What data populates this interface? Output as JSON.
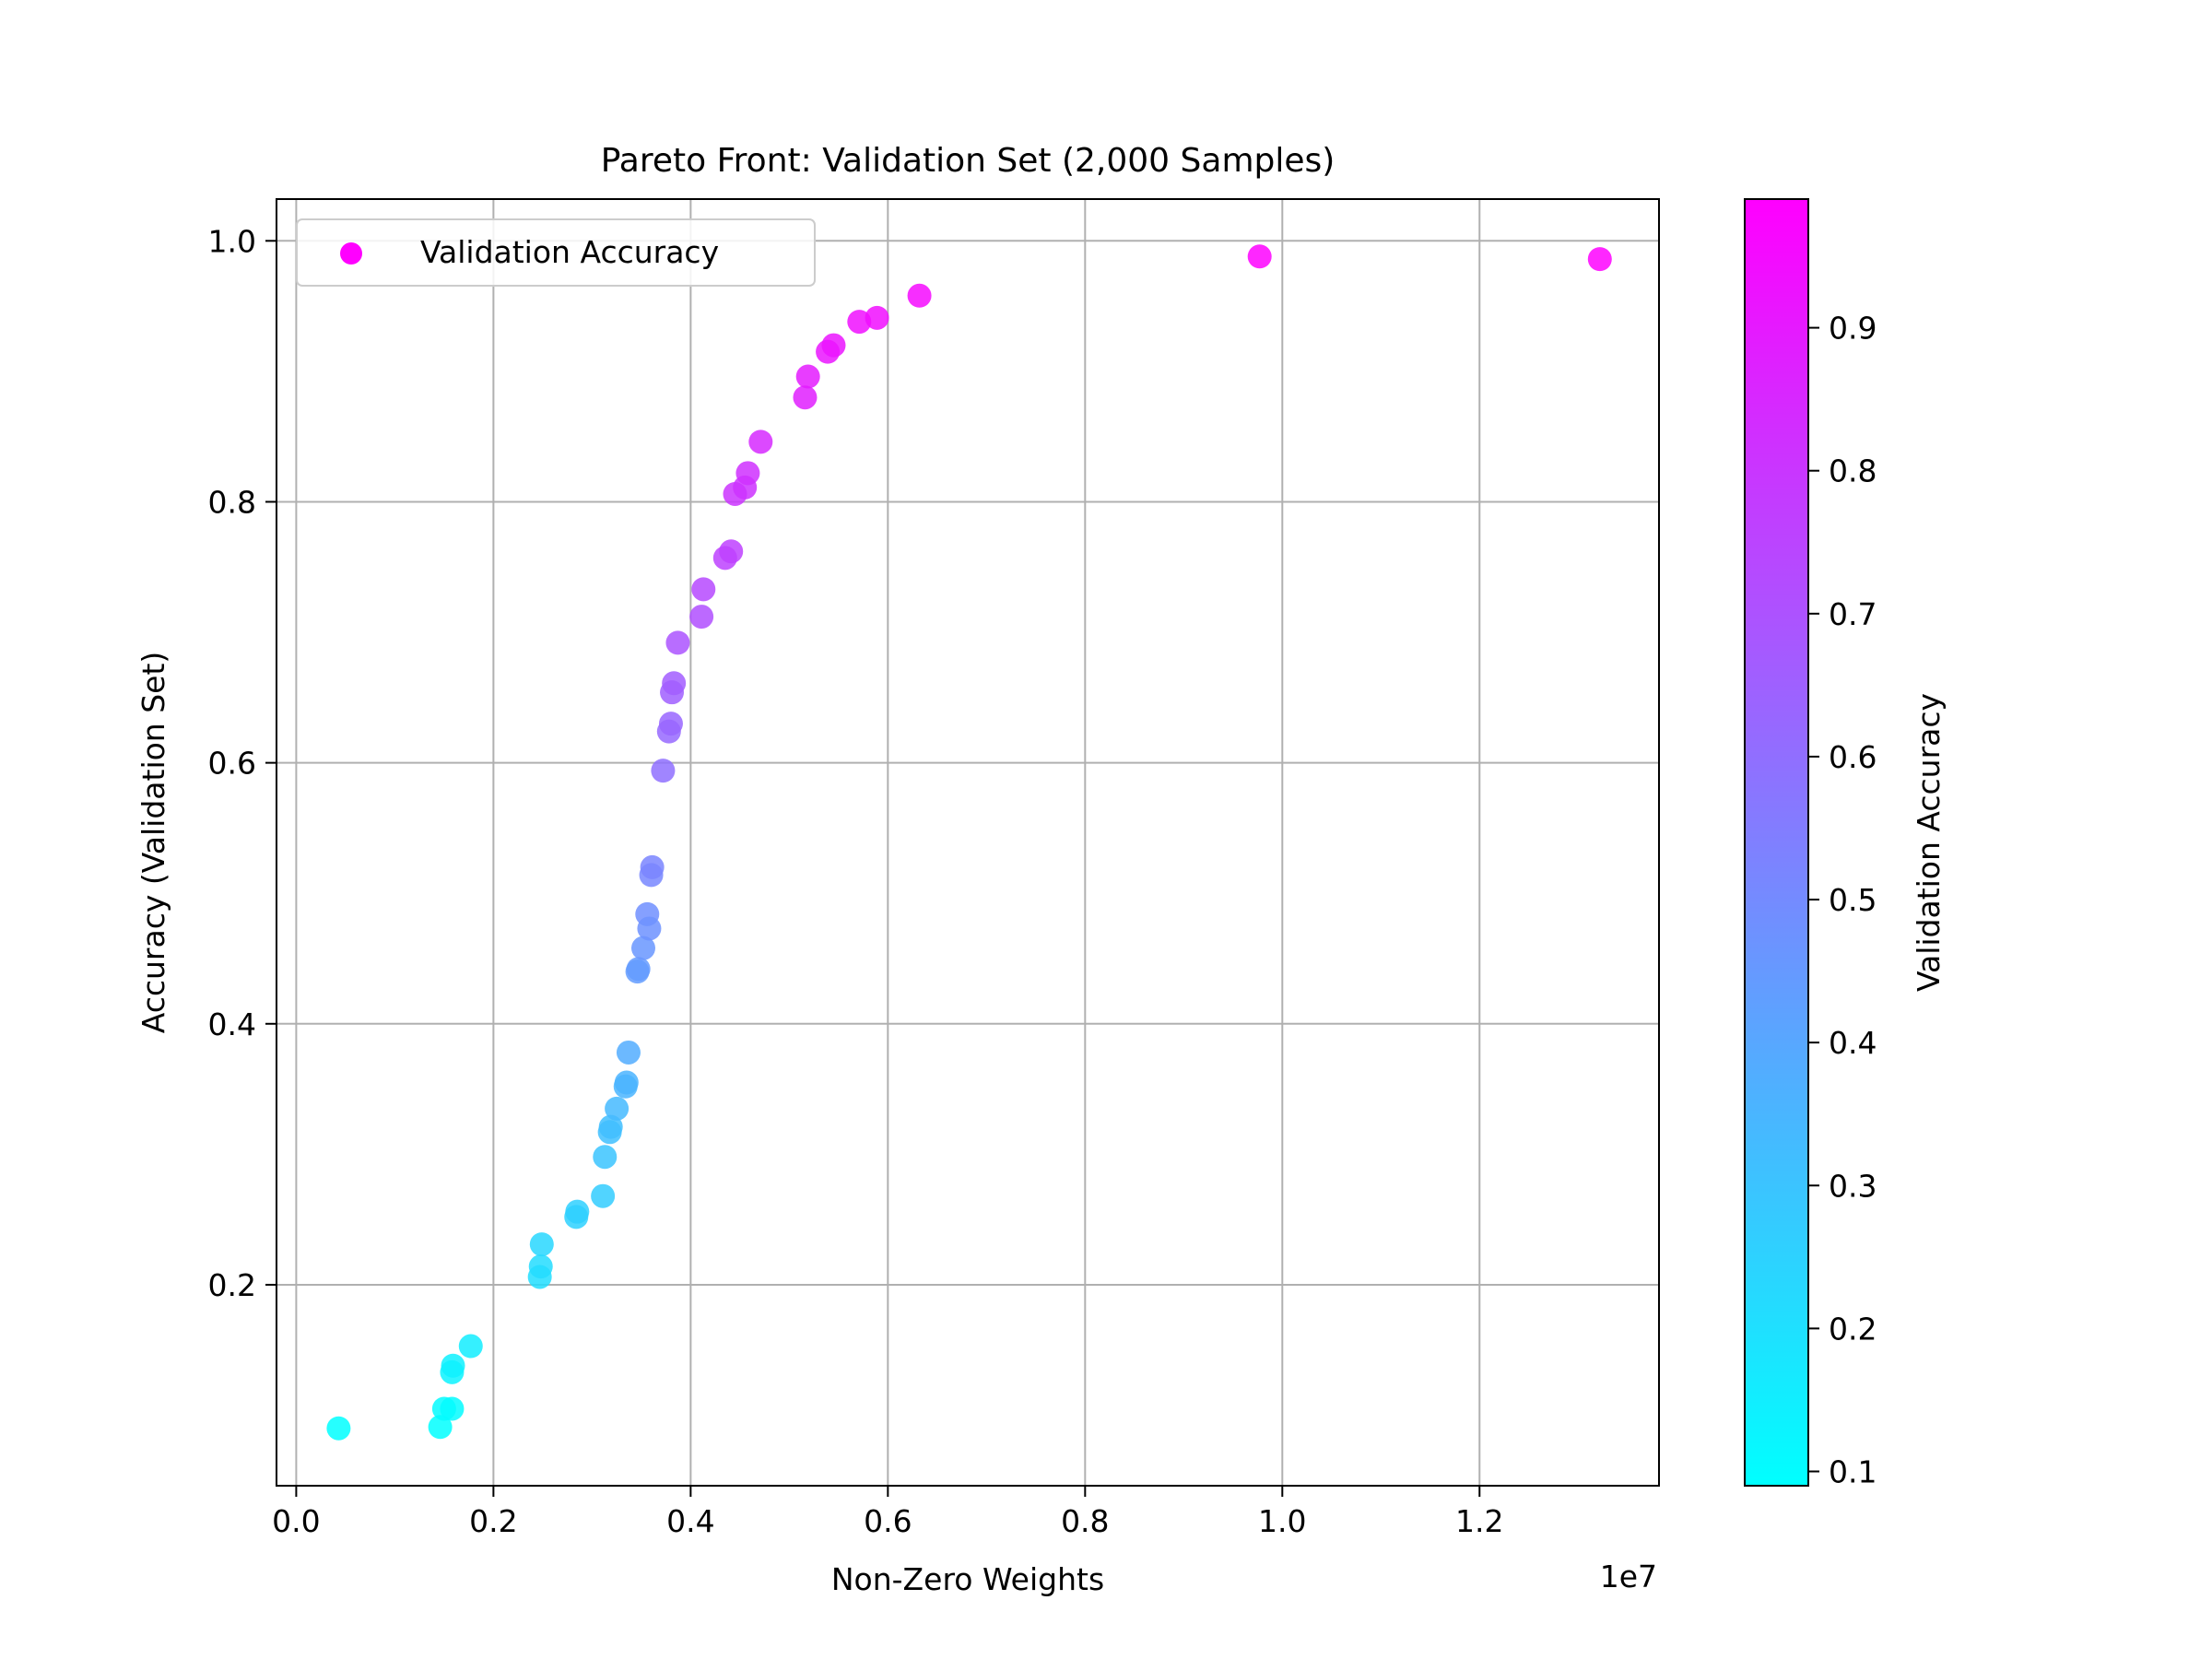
{
  "chart_data": {
    "type": "scatter",
    "title": "Pareto Front: Validation Set (2,000 Samples)",
    "xlabel": "Non-Zero Weights",
    "ylabel": "Accuracy (Validation Set)",
    "x_offset_label": "1e7",
    "xlim": [
      -0.02,
      1.382
    ],
    "ylim": [
      0.046,
      1.032
    ],
    "x_ticks": [
      0.0,
      0.2,
      0.4,
      0.6,
      0.8,
      1.0,
      1.2
    ],
    "x_tick_labels": [
      "0.0",
      "0.2",
      "0.4",
      "0.6",
      "0.8",
      "1.0",
      "1.2"
    ],
    "y_ticks": [
      0.2,
      0.4,
      0.6,
      0.8,
      1.0
    ],
    "y_tick_labels": [
      "0.2",
      "0.4",
      "0.6",
      "0.8",
      "1.0"
    ],
    "grid": true,
    "legend": {
      "position": "top-left",
      "entries": [
        "Validation Accuracy"
      ]
    },
    "colorbar": {
      "label": "Validation Accuracy",
      "colormap": "cool",
      "range": [
        0.09,
        0.99
      ],
      "ticks": [
        0.1,
        0.2,
        0.3,
        0.4,
        0.5,
        0.6,
        0.7,
        0.8,
        0.9
      ],
      "tick_labels": [
        "0.1",
        "0.2",
        "0.3",
        "0.4",
        "0.5",
        "0.6",
        "0.7",
        "0.8",
        "0.9"
      ],
      "color_low": "#00ffff",
      "color_high": "#ff00ff"
    },
    "series": [
      {
        "name": "Validation Accuracy",
        "points": [
          [
            0.043,
            0.09
          ],
          [
            0.146,
            0.091
          ],
          [
            0.15,
            0.105
          ],
          [
            0.158,
            0.105
          ],
          [
            0.158,
            0.133
          ],
          [
            0.159,
            0.138
          ],
          [
            0.177,
            0.153
          ],
          [
            0.247,
            0.206
          ],
          [
            0.248,
            0.214
          ],
          [
            0.249,
            0.231
          ],
          [
            0.284,
            0.252
          ],
          [
            0.285,
            0.256
          ],
          [
            0.311,
            0.268
          ],
          [
            0.313,
            0.298
          ],
          [
            0.318,
            0.317
          ],
          [
            0.319,
            0.321
          ],
          [
            0.325,
            0.335
          ],
          [
            0.334,
            0.352
          ],
          [
            0.335,
            0.355
          ],
          [
            0.337,
            0.378
          ],
          [
            0.346,
            0.44
          ],
          [
            0.347,
            0.442
          ],
          [
            0.352,
            0.458
          ],
          [
            0.356,
            0.484
          ],
          [
            0.358,
            0.473
          ],
          [
            0.36,
            0.514
          ],
          [
            0.361,
            0.52
          ],
          [
            0.372,
            0.594
          ],
          [
            0.378,
            0.624
          ],
          [
            0.38,
            0.63
          ],
          [
            0.381,
            0.654
          ],
          [
            0.383,
            0.661
          ],
          [
            0.387,
            0.692
          ],
          [
            0.411,
            0.712
          ],
          [
            0.413,
            0.733
          ],
          [
            0.435,
            0.757
          ],
          [
            0.441,
            0.762
          ],
          [
            0.445,
            0.806
          ],
          [
            0.455,
            0.811
          ],
          [
            0.458,
            0.822
          ],
          [
            0.471,
            0.846
          ],
          [
            0.516,
            0.88
          ],
          [
            0.519,
            0.896
          ],
          [
            0.539,
            0.915
          ],
          [
            0.545,
            0.92
          ],
          [
            0.571,
            0.938
          ],
          [
            0.589,
            0.941
          ],
          [
            0.632,
            0.958
          ],
          [
            0.977,
            0.988
          ],
          [
            1.322,
            0.986
          ]
        ]
      }
    ]
  }
}
